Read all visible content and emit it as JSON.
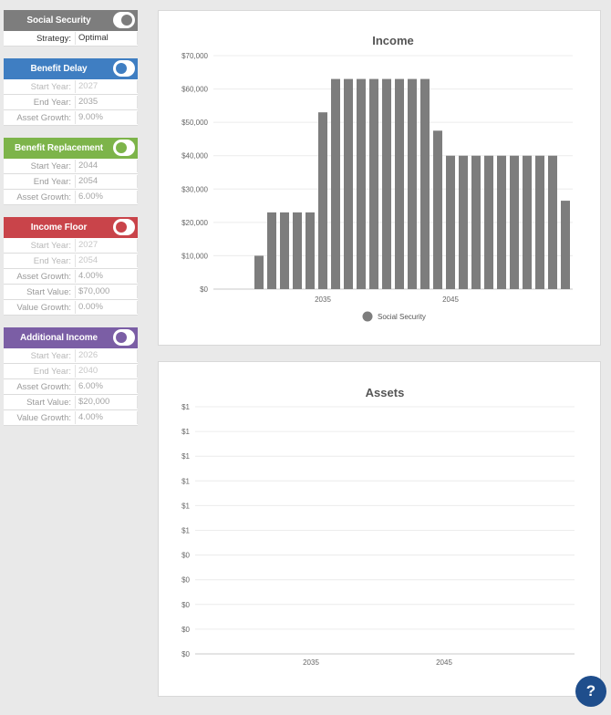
{
  "colors": {
    "social_security": "#7d7d7d",
    "benefit_delay": "#3f7ec2",
    "benefit_replacement": "#7db44a",
    "income_floor": "#c9444a",
    "additional_income": "#7b5ea5",
    "help_button": "#1f4e8c"
  },
  "sidebar": {
    "social_security": {
      "title": "Social Security",
      "toggle": "on",
      "rows": [
        {
          "label": "Strategy:",
          "value": "Optimal"
        }
      ]
    },
    "benefit_delay": {
      "title": "Benefit Delay",
      "toggle": "off",
      "rows": [
        {
          "label": "Start Year:",
          "value": "2027"
        },
        {
          "label": "End Year:",
          "value": "2035"
        },
        {
          "label": "Asset Growth:",
          "value": "9.00%"
        }
      ]
    },
    "benefit_replacement": {
      "title": "Benefit Replacement",
      "toggle": "off",
      "rows": [
        {
          "label": "Start Year:",
          "value": "2044"
        },
        {
          "label": "End Year:",
          "value": "2054"
        },
        {
          "label": "Asset Growth:",
          "value": "6.00%"
        }
      ]
    },
    "income_floor": {
      "title": "Income Floor",
      "toggle": "off",
      "rows": [
        {
          "label": "Start Year:",
          "value": "2027"
        },
        {
          "label": "End Year:",
          "value": "2054"
        },
        {
          "label": "Asset Growth:",
          "value": "4.00%"
        },
        {
          "label": "Start Value:",
          "value": "$70,000"
        },
        {
          "label": "Value Growth:",
          "value": "0.00%"
        }
      ]
    },
    "additional_income": {
      "title": "Additional Income",
      "toggle": "off",
      "rows": [
        {
          "label": "Start Year:",
          "value": "2026"
        },
        {
          "label": "End Year:",
          "value": "2040"
        },
        {
          "label": "Asset Growth:",
          "value": "6.00%"
        },
        {
          "label": "Start Value:",
          "value": "$20,000"
        },
        {
          "label": "Value Growth:",
          "value": "4.00%"
        }
      ]
    }
  },
  "help": {
    "label": "?"
  },
  "chart_data": [
    {
      "type": "bar",
      "title": "Income",
      "x": [
        2030,
        2031,
        2032,
        2033,
        2034,
        2035,
        2036,
        2037,
        2038,
        2039,
        2040,
        2041,
        2042,
        2043,
        2044,
        2045,
        2046,
        2047,
        2048,
        2049,
        2050,
        2051,
        2052,
        2053,
        2054
      ],
      "series": [
        {
          "name": "Social Security",
          "color": "#7d7d7d",
          "values": [
            10000,
            23000,
            23000,
            23000,
            23000,
            53000,
            63000,
            63000,
            63000,
            63000,
            63000,
            63000,
            63000,
            63000,
            47500,
            40000,
            40000,
            40000,
            40000,
            40000,
            40000,
            40000,
            40000,
            40000,
            26500
          ]
        }
      ],
      "y_ticks": [
        "$70,000",
        "$60,000",
        "$50,000",
        "$40,000",
        "$30,000",
        "$20,000",
        "$10,000",
        "$0"
      ],
      "x_ticks": [
        {
          "value": 2035,
          "label": "2035"
        },
        {
          "value": 2045,
          "label": "2045"
        }
      ],
      "ylim": [
        0,
        70000
      ],
      "grid": true,
      "legend": "bottom"
    },
    {
      "type": "line",
      "title": "Assets",
      "series": [],
      "y_ticks": [
        "$1",
        "$1",
        "$1",
        "$1",
        "$1",
        "$1",
        "$0",
        "$0",
        "$0",
        "$0",
        "$0"
      ],
      "x_ticks": [
        {
          "value": 2035,
          "label": "2035"
        },
        {
          "value": 2045,
          "label": "2045"
        }
      ],
      "grid": true
    }
  ]
}
